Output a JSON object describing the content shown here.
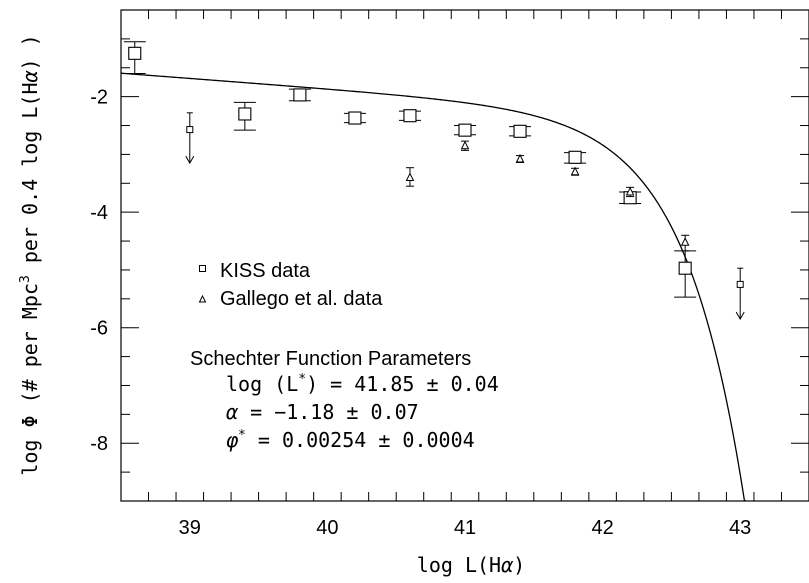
{
  "chart_data": {
    "type": "scatter",
    "title": "",
    "xlabel": "log L(Hα)",
    "ylabel": "log Φ (# per Mpc³ per 0.4 log L(Hα) )",
    "xlim": [
      38.5,
      43.5
    ],
    "ylim": [
      -9.0,
      -0.5
    ],
    "xticks": [
      39,
      40,
      41,
      42,
      43
    ],
    "yticks": [
      -2,
      -4,
      -6,
      -8
    ],
    "xtick_labels": [
      "39",
      "40",
      "41",
      "42",
      "43"
    ],
    "ytick_labels": [
      "-2",
      "-4",
      "-6",
      "-8"
    ],
    "legend": {
      "placement": "center-left",
      "entries": [
        {
          "marker": "square",
          "label": "KISS data"
        },
        {
          "marker": "triangle",
          "label": "Gallego et al. data"
        }
      ]
    },
    "series": [
      {
        "name": "KISS data",
        "marker": "square",
        "points": [
          {
            "x": 38.6,
            "y": -1.25,
            "err_low": 0.35,
            "err_high": 0.2
          },
          {
            "x": 39.4,
            "y": -2.3,
            "err_low": 0.28,
            "err_high": 0.2
          },
          {
            "x": 39.8,
            "y": -1.97,
            "err_low": 0.1,
            "err_high": 0.1
          },
          {
            "x": 40.2,
            "y": -2.37,
            "err_low": 0.08,
            "err_high": 0.08
          },
          {
            "x": 40.6,
            "y": -2.33,
            "err_low": 0.08,
            "err_high": 0.08
          },
          {
            "x": 41.0,
            "y": -2.58,
            "err_low": 0.08,
            "err_high": 0.08
          },
          {
            "x": 41.4,
            "y": -2.6,
            "err_low": 0.08,
            "err_high": 0.08
          },
          {
            "x": 41.8,
            "y": -3.05,
            "err_low": 0.1,
            "err_high": 0.08
          },
          {
            "x": 42.2,
            "y": -3.75,
            "err_low": 0.1,
            "err_high": 0.1
          },
          {
            "x": 42.6,
            "y": -4.97,
            "err_low": 0.5,
            "err_high": 0.3
          }
        ],
        "upper_limits": [
          {
            "x": 39.0,
            "y": -2.57,
            "tick": -2.28,
            "arrow_to": -3.15
          },
          {
            "x": 43.0,
            "y": -5.25,
            "tick": -4.97,
            "arrow_to": -5.85
          }
        ]
      },
      {
        "name": "Gallego et al. data",
        "marker": "triangle",
        "points": [
          {
            "x": 40.6,
            "y": -3.4,
            "err_low": 0.15,
            "err_high": 0.17
          },
          {
            "x": 41.0,
            "y": -2.85,
            "err_low": 0.08,
            "err_high": 0.08
          },
          {
            "x": 41.4,
            "y": -3.08,
            "err_low": 0.06,
            "err_high": 0.06
          },
          {
            "x": 41.8,
            "y": -3.3,
            "err_low": 0.06,
            "err_high": 0.06
          },
          {
            "x": 42.2,
            "y": -3.65,
            "err_low": 0.08,
            "err_high": 0.08
          },
          {
            "x": 42.6,
            "y": -4.52,
            "err_low": 0.15,
            "err_high": 0.12
          }
        ]
      }
    ],
    "fit": {
      "name": "Schechter Function",
      "log_Lstar": 41.85,
      "alpha": -1.18,
      "phistar": 0.00254,
      "offset": 0.398
    },
    "annotation": {
      "heading": "Schechter Function Parameters",
      "line1": "log (L*) = 41.85 ± 0.04",
      "line2": "α = −1.18 ± 0.07",
      "line3": "φ* = 0.00254 ± 0.0004"
    }
  }
}
